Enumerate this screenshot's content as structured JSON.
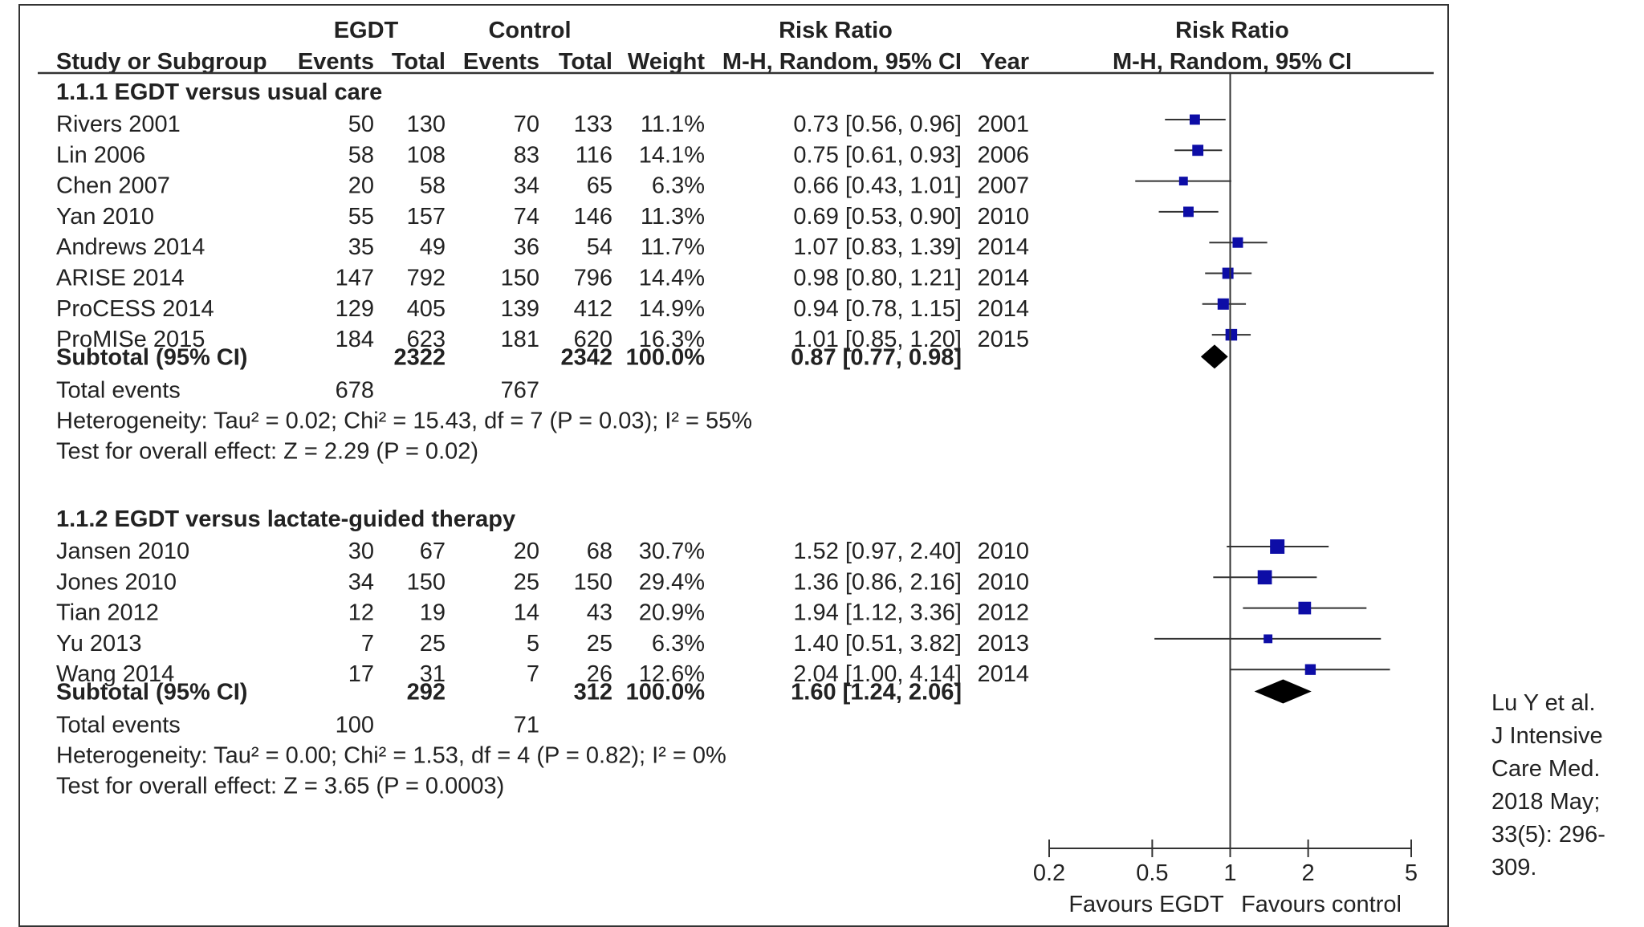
{
  "chart_data": {
    "type": "forest",
    "headers": {
      "group1": "EGDT",
      "group2": "Control",
      "risk_ratio": "Risk Ratio",
      "risk_ratio_plot": "Risk Ratio",
      "study": "Study or Subgroup",
      "events1": "Events",
      "total1": "Total",
      "events2": "Events",
      "total2": "Total",
      "weight": "Weight",
      "method": "M-H, Random, 95% CI",
      "year": "Year",
      "method_plot": "M-H, Random, 95% CI"
    },
    "subgroups": [
      {
        "title": "1.1.1 EGDT versus usual care",
        "studies": [
          {
            "name": "Rivers 2001",
            "e1": "50",
            "t1": "130",
            "e2": "70",
            "t2": "133",
            "weight": "11.1%",
            "ci_text": "0.73 [0.56, 0.96]",
            "year": "2001",
            "rr": 0.73,
            "lo": 0.56,
            "hi": 0.96
          },
          {
            "name": "Lin 2006",
            "e1": "58",
            "t1": "108",
            "e2": "83",
            "t2": "116",
            "weight": "14.1%",
            "ci_text": "0.75 [0.61, 0.93]",
            "year": "2006",
            "rr": 0.75,
            "lo": 0.61,
            "hi": 0.93
          },
          {
            "name": "Chen 2007",
            "e1": "20",
            "t1": "58",
            "e2": "34",
            "t2": "65",
            "weight": "6.3%",
            "ci_text": "0.66 [0.43, 1.01]",
            "year": "2007",
            "rr": 0.66,
            "lo": 0.43,
            "hi": 1.01
          },
          {
            "name": "Yan 2010",
            "e1": "55",
            "t1": "157",
            "e2": "74",
            "t2": "146",
            "weight": "11.3%",
            "ci_text": "0.69 [0.53, 0.90]",
            "year": "2010",
            "rr": 0.69,
            "lo": 0.53,
            "hi": 0.9
          },
          {
            "name": "Andrews 2014",
            "e1": "35",
            "t1": "49",
            "e2": "36",
            "t2": "54",
            "weight": "11.7%",
            "ci_text": "1.07 [0.83, 1.39]",
            "year": "2014",
            "rr": 1.07,
            "lo": 0.83,
            "hi": 1.39
          },
          {
            "name": "ARISE 2014",
            "e1": "147",
            "t1": "792",
            "e2": "150",
            "t2": "796",
            "weight": "14.4%",
            "ci_text": "0.98 [0.80, 1.21]",
            "year": "2014",
            "rr": 0.98,
            "lo": 0.8,
            "hi": 1.21
          },
          {
            "name": "ProCESS 2014",
            "e1": "129",
            "t1": "405",
            "e2": "139",
            "t2": "412",
            "weight": "14.9%",
            "ci_text": "0.94 [0.78, 1.15]",
            "year": "2014",
            "rr": 0.94,
            "lo": 0.78,
            "hi": 1.15
          },
          {
            "name": "ProMISe 2015",
            "e1": "184",
            "t1": "623",
            "e2": "181",
            "t2": "620",
            "weight": "16.3%",
            "ci_text": "1.01 [0.85, 1.20]",
            "year": "2015",
            "rr": 1.01,
            "lo": 0.85,
            "hi": 1.2
          }
        ],
        "subtotal": {
          "label": "Subtotal (95% CI)",
          "t1": "2322",
          "t2": "2342",
          "weight": "100.0%",
          "ci_text": "0.87 [0.77, 0.98]",
          "rr": 0.87,
          "lo": 0.77,
          "hi": 0.98
        },
        "total_events": {
          "label": "Total events",
          "e1": "678",
          "e2": "767"
        },
        "heterogeneity": "Heterogeneity: Tau² = 0.02; Chi² = 15.43, df = 7 (P = 0.03); I² = 55%",
        "overall_effect": "Test for overall effect: Z = 2.29 (P = 0.02)"
      },
      {
        "title": "1.1.2 EGDT versus lactate-guided therapy",
        "studies": [
          {
            "name": "Jansen 2010",
            "e1": "30",
            "t1": "67",
            "e2": "20",
            "t2": "68",
            "weight": "30.7%",
            "ci_text": "1.52 [0.97, 2.40]",
            "year": "2010",
            "rr": 1.52,
            "lo": 0.97,
            "hi": 2.4
          },
          {
            "name": "Jones 2010",
            "e1": "34",
            "t1": "150",
            "e2": "25",
            "t2": "150",
            "weight": "29.4%",
            "ci_text": "1.36 [0.86, 2.16]",
            "year": "2010",
            "rr": 1.36,
            "lo": 0.86,
            "hi": 2.16
          },
          {
            "name": "Tian 2012",
            "e1": "12",
            "t1": "19",
            "e2": "14",
            "t2": "43",
            "weight": "20.9%",
            "ci_text": "1.94 [1.12, 3.36]",
            "year": "2012",
            "rr": 1.94,
            "lo": 1.12,
            "hi": 3.36
          },
          {
            "name": "Yu 2013",
            "e1": "7",
            "t1": "25",
            "e2": "5",
            "t2": "25",
            "weight": "6.3%",
            "ci_text": "1.40 [0.51, 3.82]",
            "year": "2013",
            "rr": 1.4,
            "lo": 0.51,
            "hi": 3.82
          },
          {
            "name": "Wang 2014",
            "e1": "17",
            "t1": "31",
            "e2": "7",
            "t2": "26",
            "weight": "12.6%",
            "ci_text": "2.04 [1.00, 4.14]",
            "year": "2014",
            "rr": 2.04,
            "lo": 1.0,
            "hi": 4.14
          }
        ],
        "subtotal": {
          "label": "Subtotal (95% CI)",
          "t1": "292",
          "t2": "312",
          "weight": "100.0%",
          "ci_text": "1.60 [1.24, 2.06]",
          "rr": 1.6,
          "lo": 1.24,
          "hi": 2.06
        },
        "total_events": {
          "label": "Total events",
          "e1": "100",
          "e2": "71"
        },
        "heterogeneity": "Heterogeneity: Tau² = 0.00; Chi² = 1.53, df = 4 (P = 0.82); I² = 0%",
        "overall_effect": "Test for overall effect: Z = 3.65 (P = 0.0003)"
      }
    ],
    "x_axis": {
      "scale": "log",
      "range": [
        0.2,
        5
      ],
      "ticks": [
        0.2,
        0.5,
        1,
        2,
        5
      ],
      "tick_labels": [
        "0.2",
        "0.5",
        "1",
        "2",
        "5"
      ],
      "null_value": 1
    },
    "favours_left": "Favours EGDT",
    "favours_right": "Favours control",
    "marker_color": "#0d0da6",
    "diamond_color": "#000000"
  },
  "citation": {
    "lines": [
      "Lu Y et al.",
      "J Intensive",
      "Care Med.",
      "2018 May;",
      "33(5): 296-",
      "309."
    ]
  }
}
